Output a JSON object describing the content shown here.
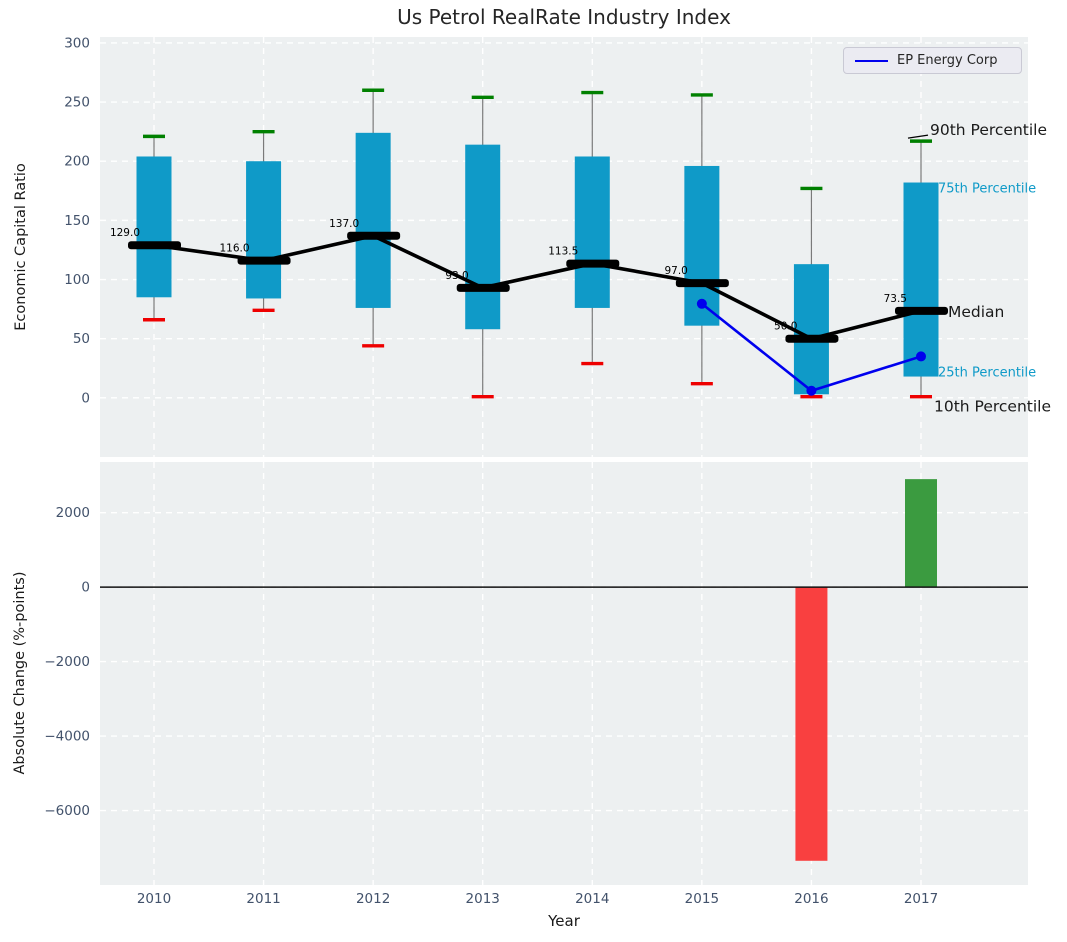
{
  "colors": {
    "axes_bg": "#edf0f1",
    "grid": "#ffffff",
    "box": "#0f9ac8",
    "whisker": "#7a7a7a",
    "p90_cap": "#008000",
    "p10_cap": "#ee0000",
    "median": "#000000",
    "ep_line": "#0000ee",
    "bar_positive": "#3b9b40",
    "bar_negative": "#f94040",
    "tick_label": "#42526b",
    "cyan_label": "#0f9ac8",
    "black_label": "#1a1a1a"
  },
  "chart_data": [
    {
      "type": "box-percentile-timeseries",
      "title": "Us Petrol RealRate Industry Index",
      "ylabel": "Economic Capital Ratio",
      "ylim": [
        -50,
        305
      ],
      "yticks": [
        0,
        50,
        100,
        150,
        200,
        250,
        300
      ],
      "grid": true,
      "legend_position": "upper right",
      "categories": [
        "2010",
        "2011",
        "2012",
        "2013",
        "2014",
        "2015",
        "2016",
        "2017"
      ],
      "percentiles": {
        "p90": [
          221,
          225,
          260,
          254,
          258,
          256,
          177,
          217
        ],
        "p75": [
          204,
          200,
          224,
          214,
          204,
          196,
          113,
          182
        ],
        "median": [
          129,
          116,
          137,
          93,
          113.5,
          97,
          50,
          73.5
        ],
        "p25": [
          85,
          84,
          76,
          58,
          76,
          61,
          3,
          18
        ],
        "p10": [
          66,
          74,
          44,
          1,
          29,
          12,
          1,
          1
        ]
      },
      "median_labels": [
        "129.0",
        "116.0",
        "137.0",
        "93.0",
        "113.5",
        "97.0",
        "50.0",
        "73.5"
      ],
      "series": [
        {
          "name": "EP Energy Corp",
          "x": [
            "2015",
            "2016",
            "2017"
          ],
          "values": [
            79.5,
            6,
            35
          ]
        }
      ],
      "legend": {
        "label": "EP Energy Corp"
      },
      "right_labels": [
        {
          "key": "p90",
          "text": "90th Percentile",
          "style": "black"
        },
        {
          "key": "p75",
          "text": "75th Percentile",
          "style": "cyan"
        },
        {
          "key": "median",
          "text": "Median",
          "style": "black"
        },
        {
          "key": "p25",
          "text": "25th Percentile",
          "style": "cyan"
        },
        {
          "key": "p10",
          "text": "10th Percentile",
          "style": "black"
        }
      ]
    },
    {
      "type": "bar",
      "ylabel": "Absolute Change (%-points)",
      "xlabel": "Year",
      "ylim": [
        -8000,
        3360
      ],
      "yticks": [
        2000,
        0,
        -2000,
        -4000,
        -6000
      ],
      "grid": true,
      "categories": [
        "2010",
        "2011",
        "2012",
        "2013",
        "2014",
        "2015",
        "2016",
        "2017"
      ],
      "values": [
        null,
        null,
        null,
        null,
        null,
        null,
        -7350,
        2900
      ]
    }
  ]
}
